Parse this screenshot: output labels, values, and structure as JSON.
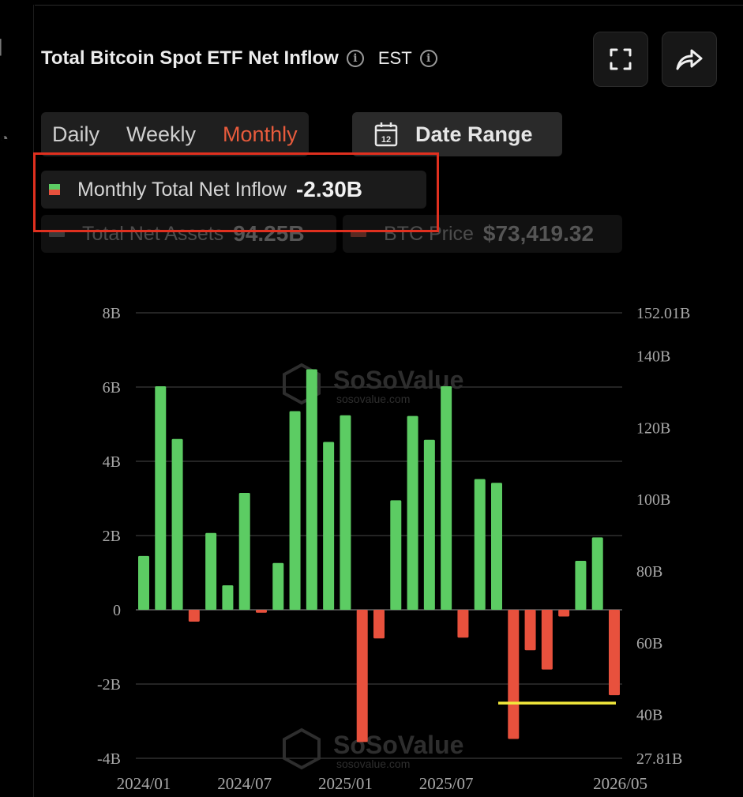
{
  "header": {
    "title": "Total Bitcoin Spot ETF Net Inflow",
    "timezone": "EST",
    "fullscreen_icon": "fullscreen-icon",
    "share_icon": "share-icon"
  },
  "tabs": [
    {
      "label": "Daily",
      "active": false
    },
    {
      "label": "Weekly",
      "active": false
    },
    {
      "label": "Monthly",
      "active": true
    }
  ],
  "date_range": {
    "label": "Date Range",
    "icon": "calendar-icon",
    "icon_text": "12"
  },
  "legend": {
    "net_inflow": {
      "label": "Monthly Total Net Inflow",
      "value": "-2.30B"
    },
    "total_assets": {
      "label": "Total Net Assets",
      "value": "94.25B"
    },
    "btc_price": {
      "label": "BTC Price",
      "value": "$73,419.32"
    }
  },
  "watermark": {
    "brand": "SoSoValue",
    "site": "sosovalue.com"
  },
  "colors": {
    "positive": "#5ccc63",
    "negative": "#e8513d",
    "accent": "#e85b3c",
    "highlight_line": "#f2e93c",
    "annotation_box": "#e0301f"
  },
  "chart_data": {
    "type": "bar",
    "x": [
      "2024/01",
      "2024/02",
      "2024/03",
      "2024/04",
      "2024/05",
      "2024/06",
      "2024/07",
      "2024/08",
      "2024/09",
      "2024/10",
      "2024/11",
      "2024/12",
      "2025/01",
      "2025/02",
      "2025/03",
      "2025/04",
      "2025/05",
      "2025/06",
      "2025/07",
      "2025/08",
      "2025/09",
      "2025/10",
      "2025/11",
      "2025/12",
      "2026/01",
      "2026/02",
      "2026/03",
      "2026/04",
      "2026/05"
    ],
    "series": [
      {
        "values": [
          1.45,
          6.02,
          4.6,
          -0.32,
          2.07,
          0.66,
          3.15,
          -0.08,
          1.26,
          5.35,
          6.48,
          4.52,
          5.24,
          -3.56,
          -0.77,
          2.95,
          5.22,
          4.58,
          6.02,
          -0.75,
          3.52,
          3.42,
          -3.48,
          -1.09,
          -1.61,
          -0.18,
          1.32,
          1.95,
          -2.3
        ]
      }
    ],
    "x_tick_labels": [
      "2024/01",
      "2024/07",
      "2025/01",
      "2025/07",
      "2026/05"
    ],
    "y_left": {
      "ticks": [
        "8B",
        "6B",
        "4B",
        "2B",
        "0",
        "-2B",
        "-4B"
      ],
      "range": [
        -4,
        8
      ]
    },
    "y_right": {
      "ticks": [
        "152.01B",
        "140B",
        "120B",
        "100B",
        "80B",
        "60B",
        "40B",
        "27.81B"
      ],
      "range": [
        27.81,
        152.01
      ]
    },
    "grid": true,
    "reference_line": {
      "value": -2.3,
      "from": "2025/10",
      "to": "2026/05"
    }
  }
}
